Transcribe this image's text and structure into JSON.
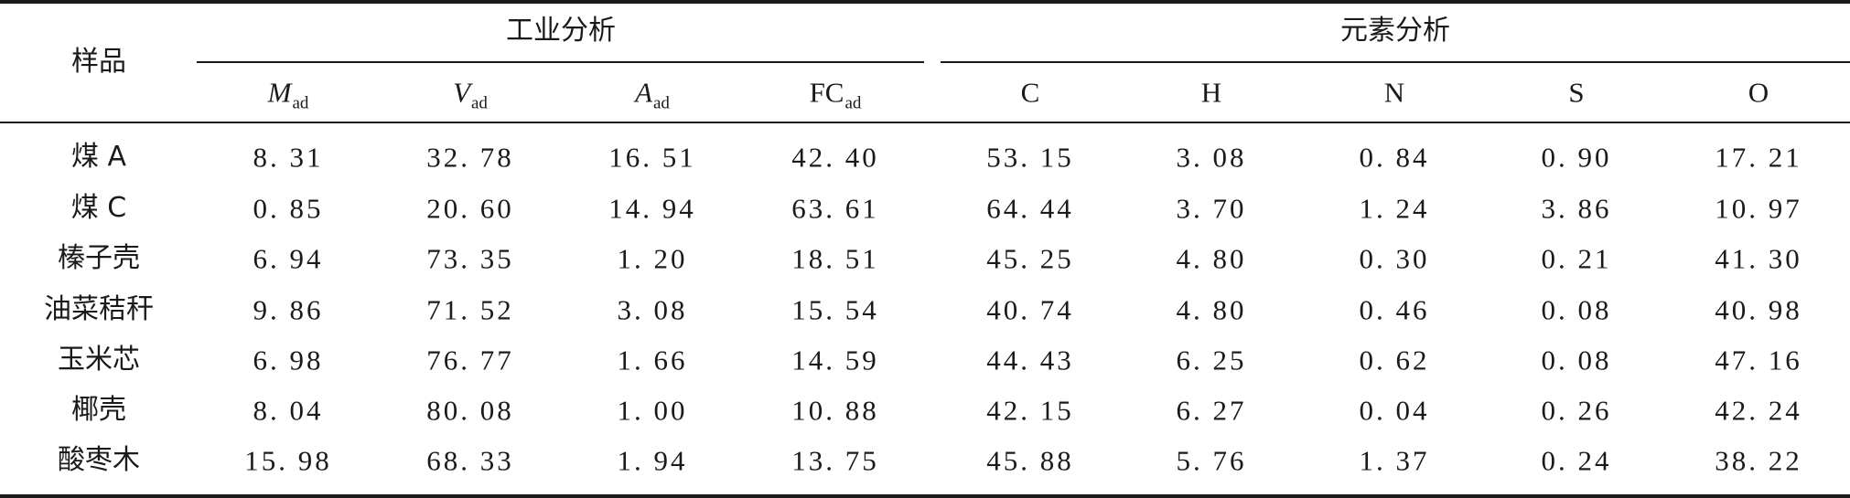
{
  "table": {
    "header": {
      "sample_label": "样品",
      "group_proximate": "工业分析",
      "group_ultimate": "元素分析",
      "columns": [
        {
          "main": "M",
          "sub": "ad",
          "italic": true
        },
        {
          "main": "V",
          "sub": "ad",
          "italic": true
        },
        {
          "main": "A",
          "sub": "ad",
          "italic": true
        },
        {
          "main": "FC",
          "sub": "ad",
          "italic": false
        },
        {
          "main": "C",
          "sub": "",
          "italic": false
        },
        {
          "main": "H",
          "sub": "",
          "italic": false
        },
        {
          "main": "N",
          "sub": "",
          "italic": false
        },
        {
          "main": "S",
          "sub": "",
          "italic": false
        },
        {
          "main": "O",
          "sub": "",
          "italic": false
        }
      ]
    },
    "rows": [
      {
        "name": "煤 A",
        "values": [
          "8. 31",
          "32. 78",
          "16. 51",
          "42. 40",
          "53. 15",
          "3. 08",
          "0. 84",
          "0. 90",
          "17. 21"
        ]
      },
      {
        "name": "煤 C",
        "values": [
          "0. 85",
          "20. 60",
          "14. 94",
          "63. 61",
          "64. 44",
          "3. 70",
          "1. 24",
          "3. 86",
          "10. 97"
        ]
      },
      {
        "name": "榛子壳",
        "values": [
          "6. 94",
          "73. 35",
          "1. 20",
          "18. 51",
          "45. 25",
          "4. 80",
          "0. 30",
          "0. 21",
          "41. 30"
        ]
      },
      {
        "name": "油菜秸秆",
        "values": [
          "9. 86",
          "71. 52",
          "3. 08",
          "15. 54",
          "40. 74",
          "4. 80",
          "0. 46",
          "0. 08",
          "40. 98"
        ]
      },
      {
        "name": "玉米芯",
        "values": [
          "6. 98",
          "76. 77",
          "1. 66",
          "14. 59",
          "44. 43",
          "6. 25",
          "0. 62",
          "0. 08",
          "47. 16"
        ]
      },
      {
        "name": "椰壳",
        "values": [
          "8. 04",
          "80. 08",
          "1. 00",
          "10. 88",
          "42. 15",
          "6. 27",
          "0. 04",
          "0. 26",
          "42. 24"
        ]
      },
      {
        "name": "酸枣木",
        "values": [
          "15. 98",
          "68. 33",
          "1. 94",
          "13. 75",
          "45. 88",
          "5. 76",
          "1. 37",
          "0. 24",
          "38. 22"
        ]
      }
    ]
  }
}
